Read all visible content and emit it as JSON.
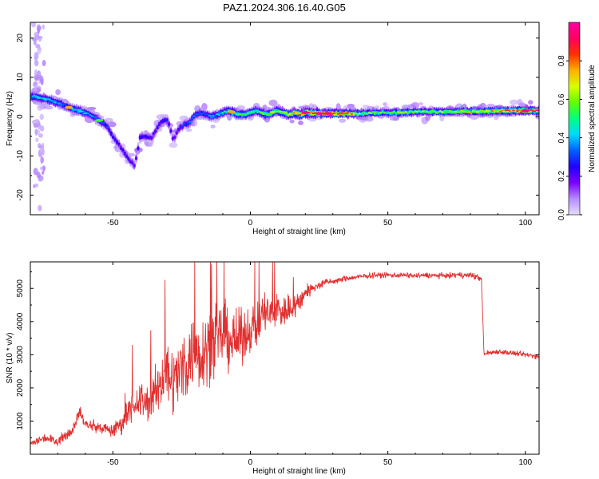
{
  "figure_title": "PAZ1.2024.306.16.40.G05",
  "chart_data": [
    {
      "type": "heatmap",
      "xlabel": "Height of straight line (km)",
      "ylabel": "Frequency (Hz)",
      "xlim": [
        -80,
        105
      ],
      "ylim": [
        -25,
        24
      ],
      "x_ticks": [
        -50,
        0,
        50,
        100
      ],
      "y_ticks": [
        -20,
        -10,
        0,
        10,
        20
      ],
      "colorbar": {
        "label": "Normalized spectral amplitude",
        "range": [
          0,
          1
        ],
        "ticks": [
          "0.0",
          "0.2",
          "0.4",
          "0.6",
          "0.8"
        ],
        "tick_values": [
          0,
          0.2,
          0.4,
          0.6,
          0.8
        ],
        "colormap": [
          "#e6dcff",
          "#b48cff",
          "#7b00ff",
          "#2200ff",
          "#0060ff",
          "#00d8ff",
          "#00ff80",
          "#60ff00",
          "#d8ff00",
          "#ffb000",
          "#ff3000",
          "#ff0060",
          "#ff00a0"
        ]
      },
      "ridge": {
        "x": [
          -78,
          -75,
          -72,
          -70,
          -68,
          -65,
          -62,
          -60,
          -57,
          -55,
          -52,
          -50,
          -48,
          -46,
          -44,
          -42,
          -40,
          -38,
          -36,
          -34,
          -32,
          -30,
          -28,
          -26,
          -24,
          -22,
          -20,
          -18,
          -16,
          -14,
          -12,
          -10,
          -8,
          -6,
          -4,
          -2,
          0,
          2,
          4,
          6,
          8,
          10,
          12,
          14,
          16,
          18,
          20,
          22,
          25,
          28,
          30,
          35,
          40,
          45,
          50,
          55,
          60,
          65,
          70,
          75,
          80,
          85,
          90,
          95,
          100,
          105
        ],
        "freq": [
          5,
          4.5,
          4,
          3.5,
          3,
          2,
          1.5,
          1,
          0,
          -1,
          -2.5,
          -5,
          -7,
          -9,
          -11,
          -12.5,
          -5,
          -5,
          -5.5,
          -3,
          -1,
          -1,
          -6,
          -3,
          -2,
          -1.5,
          0.5,
          1,
          0.5,
          0,
          0.5,
          1,
          1.5,
          1,
          0.5,
          0.5,
          1,
          1.5,
          1,
          0.5,
          1,
          1.5,
          1,
          0.5,
          1,
          0.5,
          1,
          1,
          0.8,
          0.8,
          0.8,
          0.8,
          0.8,
          1,
          1,
          1,
          1.2,
          1.2,
          1.2,
          1.3,
          1.3,
          1.3,
          1.4,
          1.5,
          1.5,
          1.5
        ],
        "amplitude": [
          0.45,
          0.45,
          0.4,
          0.4,
          0.35,
          0.4,
          0.45,
          0.4,
          0.35,
          0.35,
          0.3,
          0.25,
          0.25,
          0.25,
          0.25,
          0.2,
          0.25,
          0.25,
          0.2,
          0.25,
          0.25,
          0.25,
          0.2,
          0.25,
          0.3,
          0.35,
          0.35,
          0.3,
          0.35,
          0.4,
          0.4,
          0.45,
          0.5,
          0.55,
          0.55,
          0.5,
          0.55,
          0.5,
          0.55,
          0.55,
          0.6,
          0.55,
          0.6,
          0.65,
          0.7,
          0.8,
          0.85,
          0.85,
          0.85,
          0.9,
          0.9,
          0.85,
          0.6,
          0.55,
          0.55,
          0.6,
          0.6,
          0.6,
          0.6,
          0.65,
          0.7,
          0.7,
          0.75,
          0.8,
          0.85,
          0.9
        ]
      }
    },
    {
      "type": "line",
      "xlabel": "Height of straight line (km)",
      "ylabel": "SNR (10 * v/v)",
      "xlim": [
        -80,
        105
      ],
      "ylim": [
        0,
        5800
      ],
      "x_ticks": [
        -50,
        0,
        50,
        100
      ],
      "y_ticks": [
        1000,
        2000,
        3000,
        4000,
        5000
      ],
      "series": [
        {
          "color": "#e03030",
          "x": [
            -80,
            -75,
            -70,
            -65,
            -62,
            -60,
            -55,
            -50,
            -46,
            -44,
            -42,
            -40,
            -38,
            -35,
            -32,
            -30,
            -28,
            -25,
            -22,
            -20,
            -18,
            -15,
            -12,
            -10,
            -8,
            -5,
            -2,
            0,
            3,
            5,
            8,
            10,
            12,
            15,
            18,
            20,
            23,
            25,
            28,
            30,
            35,
            40,
            45,
            50,
            55,
            60,
            65,
            70,
            75,
            80,
            82,
            84,
            85,
            86,
            90,
            95,
            100,
            105
          ],
          "y": [
            300,
            500,
            400,
            700,
            1300,
            900,
            800,
            700,
            1000,
            1500,
            1200,
            1700,
            1500,
            1800,
            2300,
            2500,
            2200,
            2600,
            2900,
            3200,
            3000,
            3400,
            3300,
            3700,
            3500,
            3400,
            3600,
            3800,
            3900,
            4300,
            4200,
            4400,
            4300,
            4400,
            4600,
            4900,
            5000,
            5100,
            5200,
            5200,
            5300,
            5350,
            5400,
            5400,
            5400,
            5380,
            5400,
            5380,
            5400,
            5400,
            5350,
            5300,
            3000,
            3050,
            3100,
            3050,
            3000,
            2950
          ],
          "noise": [
            150,
            200,
            200,
            250,
            250,
            250,
            250,
            300,
            450,
            600,
            700,
            900,
            800,
            1000,
            1300,
            1500,
            1400,
            1600,
            1700,
            1700,
            1600,
            1700,
            1500,
            1500,
            1400,
            1300,
            1100,
            1000,
            1000,
            1000,
            900,
            900,
            800,
            700,
            500,
            350,
            250,
            200,
            150,
            130,
            130,
            120,
            120,
            120,
            120,
            120,
            120,
            120,
            120,
            120,
            150,
            150,
            120,
            120,
            120,
            120,
            120,
            120
          ]
        }
      ]
    }
  ]
}
